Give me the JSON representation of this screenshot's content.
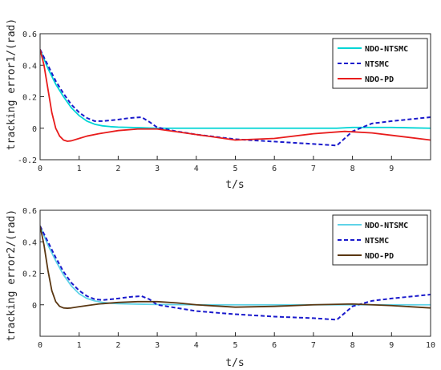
{
  "chart_data": [
    {
      "type": "line",
      "xlabel": "t/s",
      "ylabel": "tracking error1/(rad)",
      "xlim": [
        0,
        10
      ],
      "ylim": [
        -0.2,
        0.6
      ],
      "xticks": [
        "0",
        "1",
        "2",
        "3",
        "4",
        "5",
        "6",
        "7",
        "8",
        "9"
      ],
      "yticks": [
        "0.6",
        "0.4",
        "0.2",
        "0",
        "-0.2"
      ],
      "legend_position": "top-right",
      "grid": false,
      "series": [
        {
          "name": "NDO-NTSMC",
          "color": "#00d5d5",
          "style": "solid",
          "x": [
            0,
            0.2,
            0.4,
            0.6,
            0.8,
            1.0,
            1.2,
            1.4,
            1.6,
            1.8,
            2.0,
            2.3,
            2.6,
            2.8,
            3.0,
            4.0,
            5.0,
            6.0,
            7.0,
            7.6,
            8.0,
            9.0,
            10.0
          ],
          "y": [
            0.5,
            0.38,
            0.28,
            0.2,
            0.13,
            0.08,
            0.045,
            0.025,
            0.015,
            0.01,
            0.007,
            0.005,
            0.003,
            0.001,
            0.0,
            0.0,
            0.0,
            0.0,
            0.0,
            0.0,
            0.005,
            0.005,
            0.0
          ]
        },
        {
          "name": "NTSMC",
          "color": "#1a1acc",
          "style": "dashed",
          "x": [
            0,
            0.2,
            0.4,
            0.6,
            0.8,
            1.0,
            1.2,
            1.4,
            1.6,
            1.8,
            2.0,
            2.3,
            2.6,
            2.8,
            3.0,
            3.5,
            4.0,
            5.0,
            6.0,
            7.0,
            7.6,
            8.0,
            8.5,
            9.0,
            10.0
          ],
          "y": [
            0.5,
            0.4,
            0.3,
            0.22,
            0.15,
            0.1,
            0.065,
            0.045,
            0.045,
            0.05,
            0.055,
            0.065,
            0.07,
            0.04,
            0.005,
            -0.02,
            -0.04,
            -0.07,
            -0.085,
            -0.1,
            -0.11,
            -0.02,
            0.03,
            0.045,
            0.07
          ]
        },
        {
          "name": "NDO-PD",
          "color": "#e81c1c",
          "style": "solid",
          "x": [
            0,
            0.1,
            0.2,
            0.3,
            0.4,
            0.5,
            0.6,
            0.7,
            0.8,
            1.0,
            1.2,
            1.5,
            2.0,
            2.5,
            3.0,
            4.0,
            5.0,
            6.0,
            7.0,
            7.8,
            8.5,
            9.0,
            10.0
          ],
          "y": [
            0.5,
            0.4,
            0.25,
            0.1,
            0.0,
            -0.05,
            -0.075,
            -0.083,
            -0.08,
            -0.065,
            -0.05,
            -0.035,
            -0.015,
            -0.005,
            -0.005,
            -0.04,
            -0.075,
            -0.065,
            -0.035,
            -0.02,
            -0.03,
            -0.045,
            -0.075
          ]
        }
      ]
    },
    {
      "type": "line",
      "xlabel": "t/s",
      "ylabel": "tracking error2/(rad)",
      "xlim": [
        0,
        10
      ],
      "ylim": [
        -0.2,
        0.6
      ],
      "xticks": [
        "0",
        "1",
        "2",
        "3",
        "4",
        "5",
        "6",
        "7",
        "8",
        "9",
        "10"
      ],
      "yticks": [
        "0.6",
        "0.4",
        "0.2",
        "0"
      ],
      "legend_position": "top-right",
      "grid": false,
      "series": [
        {
          "name": "NDO-NTSMC",
          "color": "#5fd3e8",
          "style": "solid",
          "x": [
            0,
            0.2,
            0.4,
            0.6,
            0.8,
            1.0,
            1.2,
            1.4,
            1.6,
            1.8,
            2.0,
            2.5,
            3.0,
            4.0,
            5.0,
            6.0,
            7.0,
            8.0,
            9.0,
            10.0
          ],
          "y": [
            0.5,
            0.38,
            0.28,
            0.19,
            0.12,
            0.07,
            0.04,
            0.025,
            0.015,
            0.01,
            0.007,
            0.004,
            0.002,
            0.0,
            0.0,
            0.0,
            0.0,
            0.0,
            0.0,
            0.0
          ]
        },
        {
          "name": "NTSMC",
          "color": "#1a1acc",
          "style": "dashed",
          "x": [
            0,
            0.2,
            0.4,
            0.6,
            0.8,
            1.0,
            1.2,
            1.4,
            1.6,
            2.0,
            2.3,
            2.6,
            2.8,
            3.0,
            3.5,
            4.0,
            5.0,
            6.0,
            7.0,
            7.6,
            8.0,
            8.5,
            9.0,
            10.0
          ],
          "y": [
            0.5,
            0.4,
            0.3,
            0.21,
            0.14,
            0.09,
            0.055,
            0.035,
            0.03,
            0.04,
            0.05,
            0.055,
            0.035,
            0.0,
            -0.02,
            -0.04,
            -0.06,
            -0.075,
            -0.085,
            -0.095,
            -0.01,
            0.025,
            0.04,
            0.065
          ]
        },
        {
          "name": "NDO-PD",
          "color": "#5a3712",
          "style": "solid",
          "x": [
            0,
            0.1,
            0.2,
            0.3,
            0.4,
            0.5,
            0.6,
            0.7,
            0.8,
            1.0,
            1.2,
            1.5,
            2.0,
            2.5,
            3.0,
            3.5,
            4.0,
            5.0,
            6.0,
            7.0,
            8.0,
            9.0,
            10.0
          ],
          "y": [
            0.5,
            0.38,
            0.22,
            0.09,
            0.02,
            -0.01,
            -0.02,
            -0.022,
            -0.02,
            -0.012,
            -0.005,
            0.005,
            0.015,
            0.02,
            0.02,
            0.012,
            0.0,
            -0.015,
            -0.01,
            0.0,
            0.005,
            -0.005,
            -0.02
          ]
        }
      ]
    }
  ]
}
